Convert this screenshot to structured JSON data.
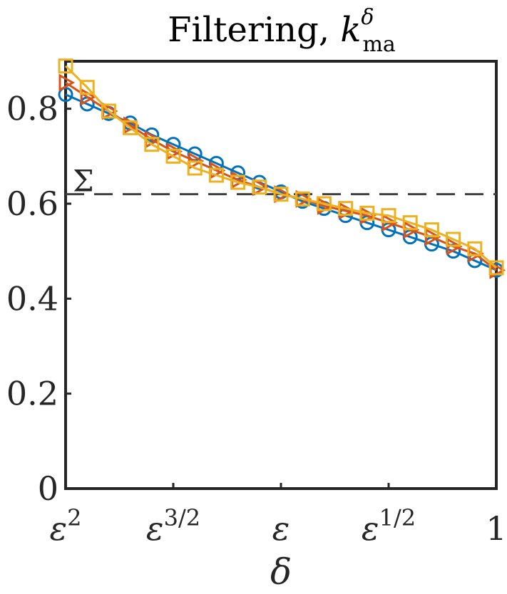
{
  "chart_data": {
    "type": "line",
    "title": "Filtering, ",
    "title_symbol": "k",
    "title_superscript": "δ",
    "title_subscript": "ma",
    "xlabel": "δ",
    "ylabel": "",
    "ylim": [
      0,
      0.9
    ],
    "xlim": [
      0,
      1
    ],
    "yticks": [
      {
        "value": 0,
        "label": "0"
      },
      {
        "value": 0.2,
        "label": "0.2"
      },
      {
        "value": 0.4,
        "label": "0.4"
      },
      {
        "value": 0.6,
        "label": "0.6"
      },
      {
        "value": 0.8,
        "label": "0.8"
      }
    ],
    "xticks": [
      {
        "value": 0,
        "base": "ε",
        "exp": "2"
      },
      {
        "value": 0.25,
        "base": "ε",
        "exp": "3/2"
      },
      {
        "value": 0.5,
        "base": "ε",
        "exp": ""
      },
      {
        "value": 0.75,
        "base": "ε",
        "exp": "1/2"
      },
      {
        "value": 1,
        "base": "1",
        "exp": ""
      }
    ],
    "reference_line": {
      "y": 0.62,
      "label": "Σ",
      "style": "dashed",
      "color": "#404040"
    },
    "grid": false,
    "x": [
      0,
      0.05,
      0.1,
      0.15,
      0.2,
      0.25,
      0.3,
      0.35,
      0.4,
      0.45,
      0.5,
      0.55,
      0.6,
      0.65,
      0.7,
      0.75,
      0.8,
      0.85,
      0.9,
      0.95,
      1
    ],
    "series": [
      {
        "color": "#0072BD",
        "marker": "circle",
        "values": [
          0.83,
          0.81,
          0.79,
          0.77,
          0.745,
          0.725,
          0.705,
          0.685,
          0.665,
          0.645,
          0.625,
          0.605,
          0.59,
          0.575,
          0.56,
          0.545,
          0.53,
          0.515,
          0.5,
          0.48,
          0.46
        ]
      },
      {
        "color": "#D95319",
        "marker": "triangle-right",
        "values": [
          0.855,
          0.825,
          0.795,
          0.765,
          0.735,
          0.71,
          0.69,
          0.67,
          0.65,
          0.635,
          0.62,
          0.61,
          0.595,
          0.585,
          0.575,
          0.56,
          0.545,
          0.53,
          0.51,
          0.495,
          0.46
        ]
      },
      {
        "color": "#EDB120",
        "marker": "square",
        "values": [
          0.89,
          0.845,
          0.795,
          0.76,
          0.725,
          0.7,
          0.675,
          0.66,
          0.645,
          0.635,
          0.62,
          0.61,
          0.6,
          0.59,
          0.58,
          0.575,
          0.56,
          0.545,
          0.525,
          0.505,
          0.465
        ]
      }
    ]
  }
}
